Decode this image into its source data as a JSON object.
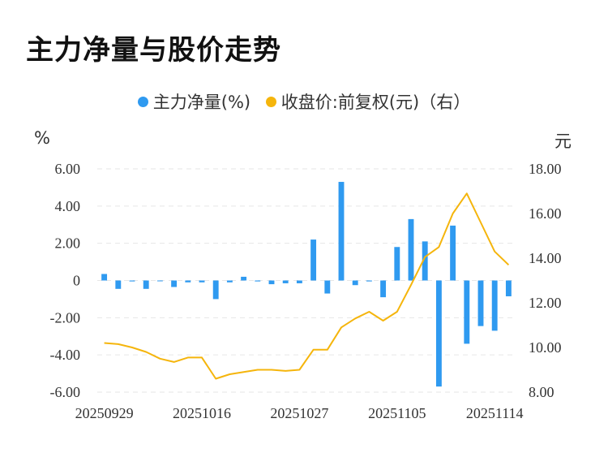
{
  "page": {
    "title": "主力净量与股价走势"
  },
  "legend": [
    {
      "label": "主力净量(%)",
      "color": "#2f9af0"
    },
    {
      "label": "收盘价:前复权(元)（右）",
      "color": "#f5b50c"
    }
  ],
  "axes": {
    "left_unit": "%",
    "right_unit": "元"
  },
  "chart_data": {
    "type": "bar",
    "x_tick_labels": [
      "20250929",
      "20251016",
      "20251027",
      "20251105",
      "20251114"
    ],
    "left_ticks": [
      "6.00",
      "4.00",
      "2.00",
      "0",
      "-2.00",
      "-4.00",
      "-6.00"
    ],
    "right_ticks": [
      "18.00",
      "16.00",
      "14.00",
      "12.00",
      "10.00",
      "8.00"
    ],
    "ylim_left": [
      -6,
      6
    ],
    "ylim_right": [
      8,
      18
    ],
    "grid": true,
    "legend_position": "top",
    "series": [
      {
        "name": "主力净量(%)",
        "type": "bar",
        "axis": "left",
        "color": "#2f9af0",
        "values": [
          0.35,
          -0.45,
          -0.05,
          -0.45,
          -0.03,
          -0.35,
          -0.1,
          -0.1,
          -1.0,
          -0.1,
          0.2,
          -0.05,
          -0.2,
          -0.15,
          -0.15,
          2.2,
          -0.7,
          5.3,
          -0.25,
          -0.05,
          -0.9,
          1.8,
          3.3,
          2.1,
          -5.7,
          2.95,
          -3.4,
          -2.45,
          -2.7,
          -0.85
        ]
      },
      {
        "name": "收盘价:前复权(元)（右）",
        "type": "line",
        "axis": "right",
        "color": "#f5b50c",
        "values": [
          10.2,
          10.15,
          10.0,
          9.8,
          9.5,
          9.35,
          9.55,
          9.55,
          8.6,
          8.8,
          8.9,
          9.0,
          9.0,
          8.95,
          9.0,
          9.9,
          9.9,
          10.9,
          11.3,
          11.6,
          11.2,
          11.6,
          12.8,
          14.05,
          14.5,
          16.0,
          16.9,
          15.6,
          14.3,
          13.7
        ]
      }
    ]
  }
}
